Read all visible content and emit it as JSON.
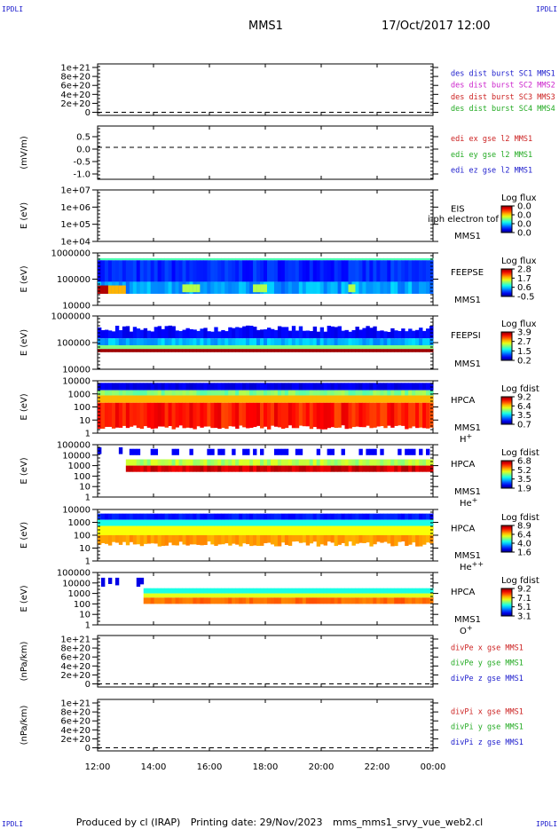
{
  "corners": {
    "label": "IPDLI"
  },
  "header": {
    "mission": "MMS1",
    "date": "17/Oct/2017 12:00"
  },
  "footer": {
    "produced": "Produced by cl (IRAP)",
    "printing": "Printing date: 29/Nov/2023",
    "file": "mms_mms1_srvy_vue_web2.cl"
  },
  "chart_data": {
    "type": "heatmap",
    "x_ticks": [
      "12:00",
      "14:00",
      "16:00",
      "18:00",
      "20:00",
      "22:00",
      "00:00"
    ],
    "panels": [
      {
        "id": "p1",
        "kind": "line",
        "ylabel": "",
        "yticks": [
          "1e+21",
          "8e+20",
          "6e+20",
          "4e+20",
          "2e+20",
          "0"
        ],
        "zero_frac": 0.94,
        "legend": [
          {
            "text": "des dist burst SC1 MMS1",
            "color": "#1a1acc"
          },
          {
            "text": "des dist burst SC2 MMS2",
            "color": "#cc22cc"
          },
          {
            "text": "des dist burst SC3 MMS3",
            "color": "#cc2222"
          },
          {
            "text": "des dist burst SC4 MMS4",
            "color": "#22aa22"
          }
        ]
      },
      {
        "id": "p2",
        "kind": "line",
        "ylabel": "(mV/m)",
        "yticks": [
          "0.5",
          "0.0",
          "-0.5",
          "-1.0"
        ],
        "zero_frac": 0.4,
        "legend": [
          {
            "text": "edi ex gse l2 MMS1",
            "color": "#cc2222"
          },
          {
            "text": "edi ey gse l2 MMS1",
            "color": "#22aa22"
          },
          {
            "text": "edi ez gse l2 MMS1",
            "color": "#1a1acc"
          }
        ]
      },
      {
        "id": "p3",
        "kind": "spec",
        "ylabel": "E (eV)",
        "yticks": [
          "1e+07",
          "1e+06",
          "1e+05",
          "1e+04"
        ],
        "side": [
          "EIS",
          "MMS1"
        ],
        "overlay": "tof_rate_energy_no_phi-ph electron tof",
        "cbar_title": "Log flux",
        "cbar_ticks": [
          "0.0",
          "0.0",
          "0.0",
          "0.0"
        ],
        "pattern": "none"
      },
      {
        "id": "p4",
        "kind": "spec",
        "ylabel": "E (eV)",
        "yticks": [
          "1000000",
          "100000",
          "10000"
        ],
        "side": [
          "FEEPSE",
          "MMS1"
        ],
        "cbar_title": "Log flux",
        "cbar_ticks": [
          "2.8",
          "1.7",
          "0.6",
          "-0.5"
        ],
        "pattern": "feepse"
      },
      {
        "id": "p5",
        "kind": "spec",
        "ylabel": "E (eV)",
        "yticks": [
          "1000000",
          "100000",
          "10000"
        ],
        "side": [
          "FEEPSI",
          "MMS1"
        ],
        "cbar_title": "Log flux",
        "cbar_ticks": [
          "3.9",
          "2.7",
          "1.5",
          "0.2"
        ],
        "pattern": "feepsi"
      },
      {
        "id": "p6",
        "kind": "spec",
        "ylabel": "E (eV)",
        "yticks": [
          "10000",
          "1000",
          "100",
          "10",
          "1"
        ],
        "side": [
          "HPCA",
          "MMS1",
          "H+"
        ],
        "cbar_title": "Log fdist",
        "cbar_ticks": [
          "9.2",
          "6.4",
          "3.5",
          "0.7"
        ],
        "pattern": "hplus"
      },
      {
        "id": "p7",
        "kind": "spec",
        "ylabel": "E (eV)",
        "yticks": [
          "100000",
          "10000",
          "1000",
          "100",
          "10",
          "1"
        ],
        "side": [
          "HPCA",
          "MMS1",
          "He+"
        ],
        "cbar_title": "Log fdist",
        "cbar_ticks": [
          "6.8",
          "5.2",
          "3.5",
          "1.9"
        ],
        "pattern": "heplus"
      },
      {
        "id": "p8",
        "kind": "spec",
        "ylabel": "E (eV)",
        "yticks": [
          "10000",
          "1000",
          "100",
          "10",
          "1"
        ],
        "side": [
          "HPCA",
          "MMS1",
          "He++"
        ],
        "cbar_title": "Log fdist",
        "cbar_ticks": [
          "8.9",
          "6.4",
          "4.0",
          "1.6"
        ],
        "pattern": "heplusplus"
      },
      {
        "id": "p9",
        "kind": "spec",
        "ylabel": "E (eV)",
        "yticks": [
          "100000",
          "10000",
          "1000",
          "100",
          "10",
          "1"
        ],
        "side": [
          "HPCA",
          "MMS1",
          "O+"
        ],
        "cbar_title": "Log fdist",
        "cbar_ticks": [
          "9.2",
          "7.1",
          "5.1",
          "3.1"
        ],
        "pattern": "oplus"
      },
      {
        "id": "p10",
        "kind": "line",
        "ylabel": "(nPa/km)",
        "yticks": [
          "1e+21",
          "8e+20",
          "6e+20",
          "4e+20",
          "2e+20",
          "0"
        ],
        "zero_frac": 0.94,
        "legend": [
          {
            "text": "divPe x gse MMS1",
            "color": "#cc2222"
          },
          {
            "text": "divPe y gse MMS1",
            "color": "#22aa22"
          },
          {
            "text": "divPe z gse MMS1",
            "color": "#1a1acc"
          }
        ]
      },
      {
        "id": "p11",
        "kind": "line",
        "ylabel": "(nPa/km)",
        "yticks": [
          "1e+21",
          "8e+20",
          "6e+20",
          "4e+20",
          "2e+20",
          "0"
        ],
        "zero_frac": 0.94,
        "legend": [
          {
            "text": "divPi x gse MMS1",
            "color": "#cc2222"
          },
          {
            "text": "divPi y gse MMS1",
            "color": "#22aa22"
          },
          {
            "text": "divPi z gse MMS1",
            "color": "#1a1acc"
          }
        ]
      }
    ]
  }
}
